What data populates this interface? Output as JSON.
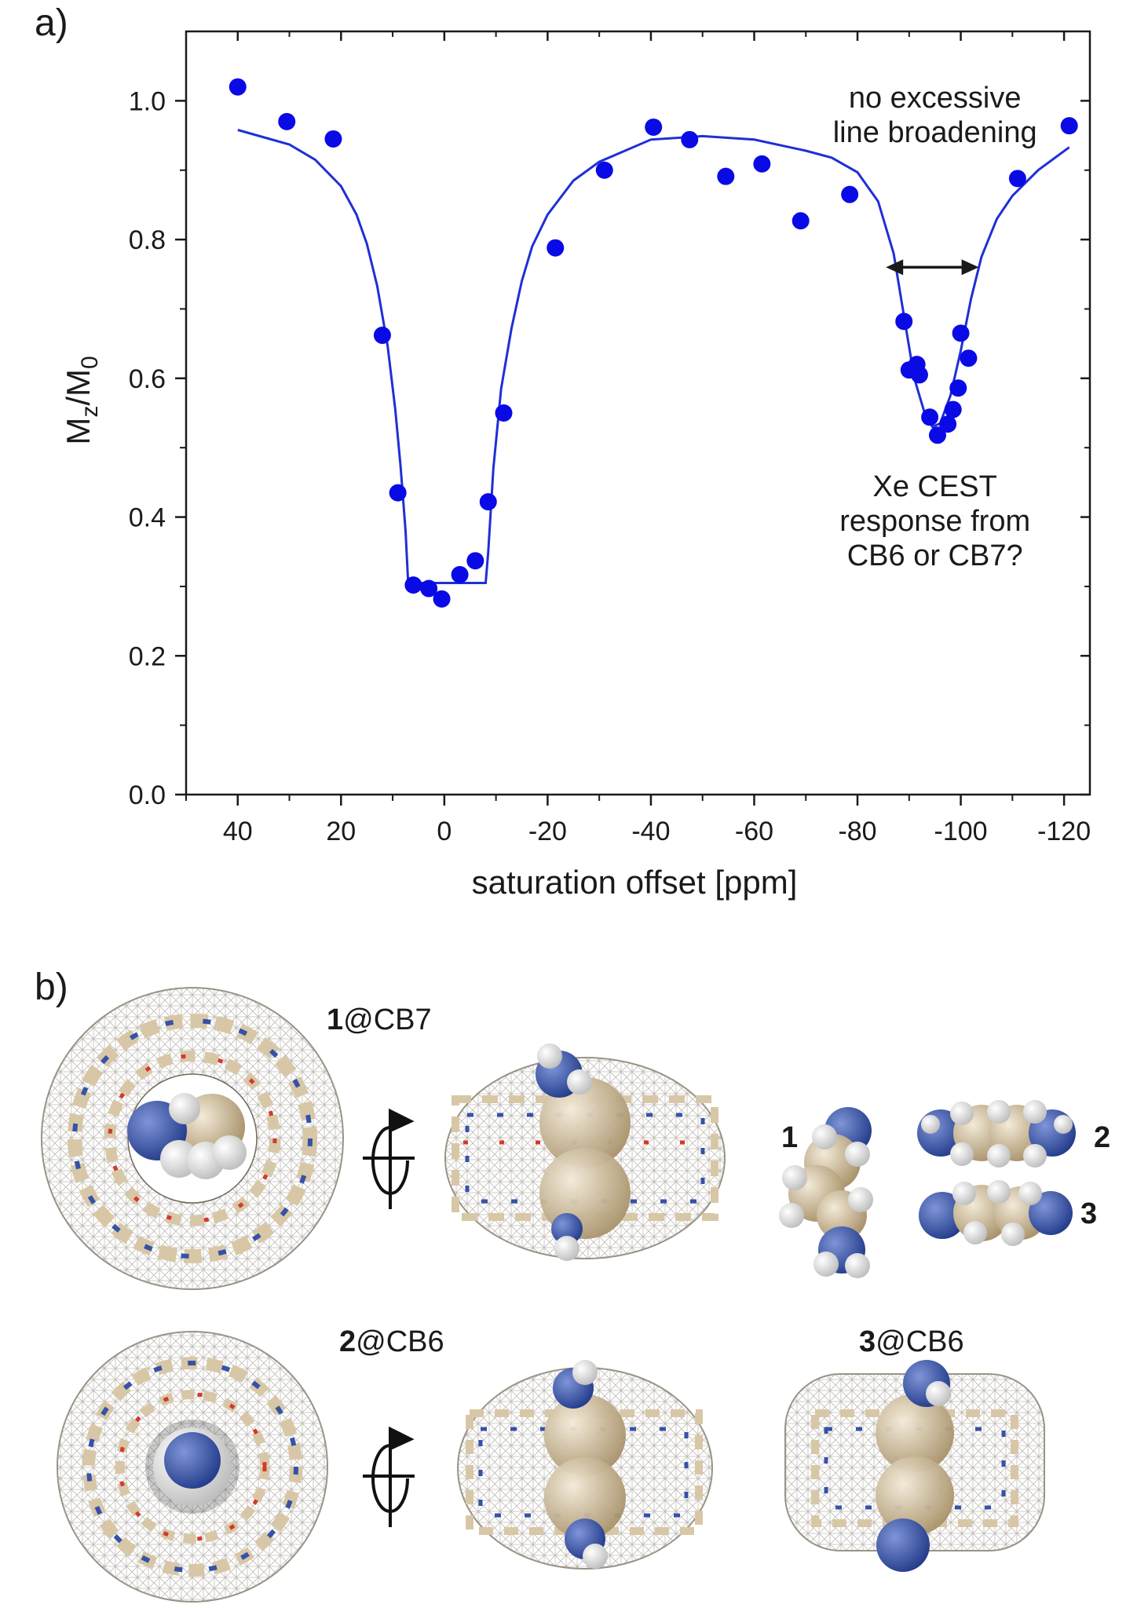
{
  "panels": {
    "a": "a)",
    "b": "b)"
  },
  "colors": {
    "data": "#0a0ae6",
    "fit": "#1f2fd6",
    "axis": "#1a1a1a",
    "carbon": "#d8c7a6",
    "nitrogen": "#3552a8",
    "oxygen": "#d23a2a",
    "hydrogen": "#eeeeee",
    "mesh": "#8a8378"
  },
  "chart_data": {
    "type": "scatter",
    "title": "",
    "xlabel": "saturation offset [ppm]",
    "ylabel": "Mz/M0",
    "xlim": [
      50,
      -125
    ],
    "ylim": [
      0,
      1.1
    ],
    "x_ticks": [
      40,
      20,
      0,
      -20,
      -40,
      -60,
      -80,
      -100,
      -120
    ],
    "x_tick_labels": [
      "40",
      "20",
      "0",
      "-20",
      "-40",
      "-60",
      "-80",
      "-100",
      "-120"
    ],
    "y_ticks": [
      0.0,
      0.2,
      0.4,
      0.6,
      0.8,
      1.0
    ],
    "y_tick_labels": [
      "0.0",
      "0.2",
      "0.4",
      "0.6",
      "0.8",
      "1.0"
    ],
    "series": [
      {
        "name": "data",
        "type": "scatter",
        "x": [
          40,
          30.5,
          21.5,
          12,
          9,
          6,
          3,
          0.5,
          -3,
          -6,
          -8.5,
          -11.5,
          -21.5,
          -31,
          -40.5,
          -47.5,
          -54.5,
          -61.5,
          -69,
          -78.5,
          -89,
          -90,
          -91.5,
          -92,
          -94,
          -95.5,
          -97.5,
          -98.5,
          -99.5,
          -100,
          -101.5,
          -111,
          -121
        ],
        "y": [
          1.02,
          0.97,
          0.945,
          0.662,
          0.435,
          0.302,
          0.297,
          0.282,
          0.317,
          0.337,
          0.422,
          0.55,
          0.788,
          0.9,
          0.962,
          0.944,
          0.891,
          0.909,
          0.827,
          0.865,
          0.682,
          0.612,
          0.62,
          0.605,
          0.544,
          0.518,
          0.534,
          0.555,
          0.586,
          0.665,
          0.629,
          0.888,
          0.964
        ]
      },
      {
        "name": "fit",
        "type": "line",
        "x": [
          40,
          30,
          25,
          20,
          17,
          15,
          13,
          11,
          9.5,
          8.5,
          7.5,
          7,
          0,
          -8,
          -8.5,
          -9.5,
          -11,
          -13,
          -15,
          -17,
          -20,
          -25,
          -30,
          -40,
          -50,
          -60,
          -70,
          -75,
          -80,
          -84,
          -87,
          -89,
          -91,
          -93,
          -94.5,
          -96,
          -98,
          -100,
          -102,
          -104,
          -107,
          -110,
          -115,
          -121
        ],
        "y": [
          0.958,
          0.937,
          0.915,
          0.877,
          0.836,
          0.794,
          0.733,
          0.648,
          0.555,
          0.475,
          0.38,
          0.305,
          0.305,
          0.305,
          0.35,
          0.47,
          0.585,
          0.672,
          0.74,
          0.79,
          0.836,
          0.885,
          0.912,
          0.944,
          0.949,
          0.944,
          0.928,
          0.918,
          0.897,
          0.855,
          0.78,
          0.69,
          0.6,
          0.55,
          0.53,
          0.535,
          0.575,
          0.64,
          0.715,
          0.775,
          0.83,
          0.863,
          0.9,
          0.933
        ]
      }
    ],
    "annotations": [
      {
        "text": [
          "no excessive",
          "line broadening"
        ],
        "x": -95,
        "y": 0.99
      },
      {
        "text": [
          "Xe CEST",
          "response from",
          "CB6 or CB7?"
        ],
        "x": -95,
        "y": 0.43
      },
      {
        "type": "double-arrow",
        "x_from": -85.5,
        "x_to": -103.5,
        "y": 0.76
      }
    ]
  },
  "molecules": {
    "cb7_label_num": "1",
    "cb7_label_text": "@CB7",
    "cb6a_label_num": "2",
    "cb6a_label_text": "@CB6",
    "cb6b_label_num": "3",
    "cb6b_label_text": "@CB6",
    "guest_1": "1",
    "guest_2": "2",
    "guest_3": "3"
  }
}
